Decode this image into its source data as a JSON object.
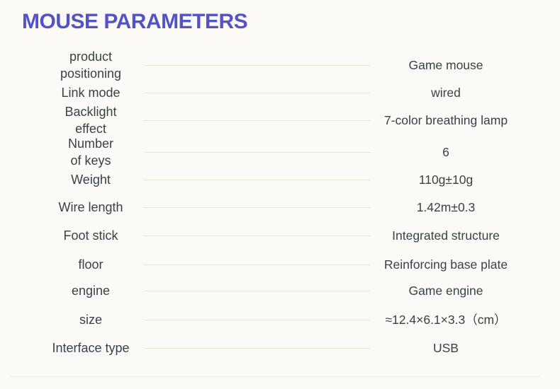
{
  "page": {
    "title": "MOUSE PARAMETERS",
    "title_color": "#5154c2",
    "background_color": "#fcfaf6",
    "text_color": "#3b404c",
    "divider_color": "#eae4da"
  },
  "spec_table": {
    "rows": [
      {
        "label": "product\npositioning",
        "value": "Game mouse"
      },
      {
        "label": "Link mode",
        "value": "wired"
      },
      {
        "label": "Backlight\neffect",
        "value": "7-color breathing lamp"
      },
      {
        "label": "Number\nof keys",
        "value": "6"
      },
      {
        "label": "Weight",
        "value": "110g±10g"
      },
      {
        "label": "Wire length",
        "value": "1.42m±0.3"
      },
      {
        "label": "Foot stick",
        "value": "Integrated structure"
      },
      {
        "label": "floor",
        "value": "Reinforcing base plate"
      },
      {
        "label": "engine",
        "value": "Game engine"
      },
      {
        "label": "size",
        "value": "≈12.4×6.1×3.3（cm）"
      },
      {
        "label": "Interface type",
        "value": "USB"
      }
    ]
  }
}
